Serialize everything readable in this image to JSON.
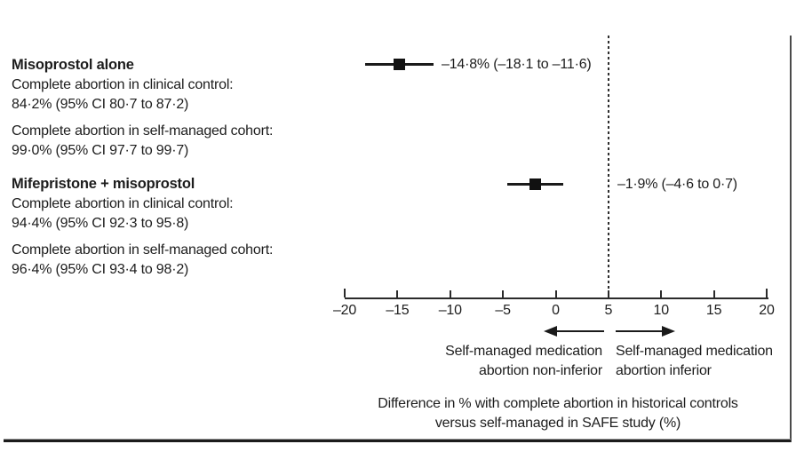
{
  "groups": [
    {
      "title": "Misoprostol alone",
      "clinical_label": "Complete abortion in clinical control:",
      "clinical_value": "84·2% (95% CI 80·7 to 87·2)",
      "cohort_label": "Complete abortion in self-managed cohort:",
      "cohort_value": "99·0% (95% CI 97·7 to 99·7)"
    },
    {
      "title": "Mifepristone + misoprostol",
      "clinical_label": "Complete abortion in clinical control:",
      "clinical_value": "94·4% (95% CI 92·3 to 95·8)",
      "cohort_label": "Complete abortion in self-managed cohort:",
      "cohort_value": "96·4% (95% CI 93·4 to 98·2)"
    }
  ],
  "chart_data": {
    "type": "scatter",
    "subtype": "forest-plot",
    "axis": {
      "min": -20,
      "max": 20,
      "reference_value": 5,
      "ticks": [
        {
          "value": -20,
          "label": "–20"
        },
        {
          "value": -15,
          "label": "–15"
        },
        {
          "value": -10,
          "label": "–10"
        },
        {
          "value": -5,
          "label": "–5"
        },
        {
          "value": 0,
          "label": "0"
        },
        {
          "value": 5,
          "label": "5"
        },
        {
          "value": 10,
          "label": "10"
        },
        {
          "value": 15,
          "label": "15"
        },
        {
          "value": 20,
          "label": "20"
        }
      ]
    },
    "points": [
      {
        "group": "Misoprostol alone",
        "estimate": -14.8,
        "ci_low": -18.1,
        "ci_high": -11.6,
        "label": "–14·8% (–18·1 to –11·6)"
      },
      {
        "group": "Mifepristone + misoprostol",
        "estimate": -1.9,
        "ci_low": -4.6,
        "ci_high": 0.7,
        "label": "–1·9% (–4·6 to 0·7)"
      }
    ],
    "direction_labels": {
      "left_line1": "Self-managed medication",
      "left_line2": "abortion non-inferior",
      "right_line1": "Self-managed medication",
      "right_line2": "abortion inferior"
    },
    "xlabel_line1": "Difference in % with complete abortion in historical controls",
    "xlabel_line2": "versus self-managed in SAFE study (%)",
    "legend_position": "none",
    "grid": false
  },
  "colors": {
    "text": "#1d1d1d",
    "line": "#2b2b2b",
    "marker": "#111111"
  }
}
